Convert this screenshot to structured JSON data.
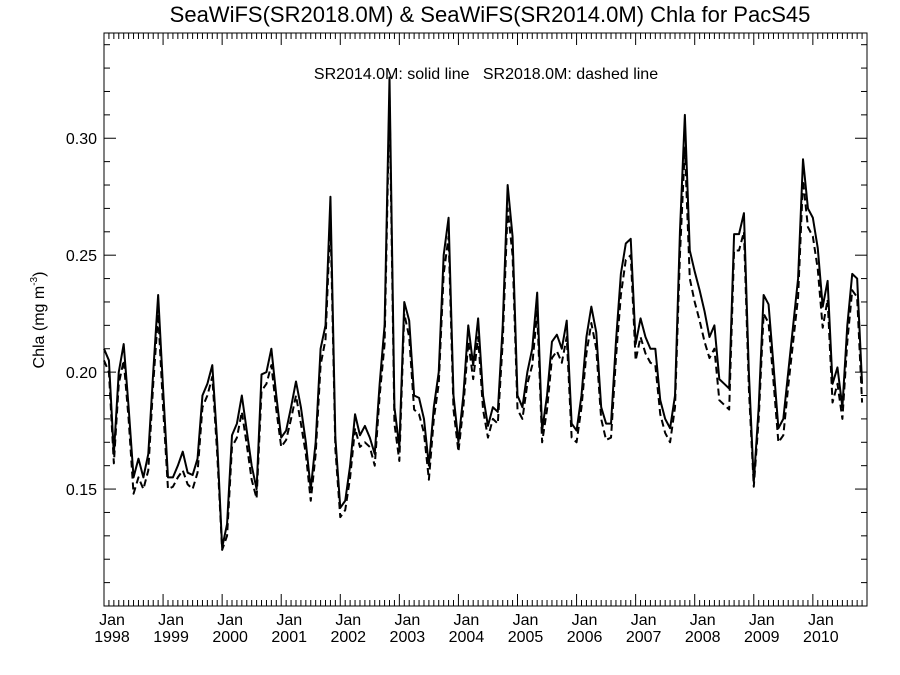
{
  "chart_data": {
    "type": "line",
    "title": "SeaWiFS(SR2018.0M) & SeaWiFS(SR2014.0M)  Chla for PacS45",
    "annotation": "SR2014.0M: solid line   SR2018.0M: dashed line",
    "ylabel": {
      "base": "Chla (mg m",
      "sup": "-3",
      "close": ")"
    },
    "x_start": "1998-01",
    "x_end": "2010-12",
    "ylim": [
      0.1,
      0.345
    ],
    "yticks": [
      0.15,
      0.2,
      0.25,
      0.3
    ],
    "ytick_labels": [
      "0.15",
      "0.20",
      "0.25",
      "0.30"
    ],
    "xtick_labels": [
      {
        "month": "Jan",
        "year": "1998"
      },
      {
        "month": "Jan",
        "year": "1999"
      },
      {
        "month": "Jan",
        "year": "2000"
      },
      {
        "month": "Jan",
        "year": "2001"
      },
      {
        "month": "Jan",
        "year": "2002"
      },
      {
        "month": "Jan",
        "year": "2003"
      },
      {
        "month": "Jan",
        "year": "2004"
      },
      {
        "month": "Jan",
        "year": "2005"
      },
      {
        "month": "Jan",
        "year": "2006"
      },
      {
        "month": "Jan",
        "year": "2007"
      },
      {
        "month": "Jan",
        "year": "2008"
      },
      {
        "month": "Jan",
        "year": "2009"
      },
      {
        "month": "Jan",
        "year": "2010"
      }
    ],
    "series": [
      {
        "style": "solid",
        "values": [
          0.21,
          0.205,
          0.165,
          0.2,
          0.212,
          0.185,
          0.155,
          0.163,
          0.155,
          0.165,
          0.2,
          0.233,
          0.193,
          0.155,
          0.155,
          0.16,
          0.166,
          0.157,
          0.156,
          0.163,
          0.19,
          0.195,
          0.203,
          0.17,
          0.125,
          0.135,
          0.173,
          0.178,
          0.19,
          0.175,
          0.16,
          0.15,
          0.199,
          0.2,
          0.21,
          0.19,
          0.172,
          0.175,
          0.185,
          0.196,
          0.185,
          0.17,
          0.15,
          0.17,
          0.21,
          0.22,
          0.275,
          0.172,
          0.142,
          0.145,
          0.16,
          0.182,
          0.173,
          0.177,
          0.172,
          0.165,
          0.195,
          0.22,
          0.326,
          0.185,
          0.168,
          0.23,
          0.222,
          0.19,
          0.189,
          0.18,
          0.16,
          0.185,
          0.2,
          0.25,
          0.266,
          0.19,
          0.17,
          0.19,
          0.22,
          0.203,
          0.223,
          0.19,
          0.177,
          0.185,
          0.183,
          0.22,
          0.28,
          0.258,
          0.19,
          0.185,
          0.2,
          0.21,
          0.234,
          0.175,
          0.19,
          0.213,
          0.216,
          0.21,
          0.222,
          0.178,
          0.175,
          0.19,
          0.215,
          0.228,
          0.217,
          0.185,
          0.178,
          0.178,
          0.213,
          0.242,
          0.255,
          0.257,
          0.212,
          0.223,
          0.215,
          0.21,
          0.21,
          0.188,
          0.18,
          0.176,
          0.19,
          0.26,
          0.31,
          0.252,
          0.243,
          0.235,
          0.226,
          0.215,
          0.22,
          0.197,
          0.195,
          0.193,
          0.259,
          0.259,
          0.268,
          0.2,
          0.153,
          0.185,
          0.233,
          0.229,
          0.203,
          0.176,
          0.18,
          0.2,
          0.22,
          0.24,
          0.291,
          0.27,
          0.266,
          0.253,
          0.228,
          0.239,
          0.195,
          0.202,
          0.185,
          0.22,
          0.242,
          0.24,
          0.195
        ]
      },
      {
        "style": "dashed",
        "values": [
          0.205,
          0.2,
          0.161,
          0.195,
          0.205,
          0.18,
          0.148,
          0.155,
          0.15,
          0.158,
          0.195,
          0.225,
          0.185,
          0.15,
          0.151,
          0.155,
          0.158,
          0.152,
          0.15,
          0.157,
          0.185,
          0.19,
          0.198,
          0.165,
          0.124,
          0.13,
          0.168,
          0.172,
          0.183,
          0.169,
          0.154,
          0.146,
          0.192,
          0.195,
          0.203,
          0.184,
          0.168,
          0.171,
          0.18,
          0.19,
          0.178,
          0.165,
          0.145,
          0.165,
          0.203,
          0.214,
          0.266,
          0.167,
          0.138,
          0.141,
          0.155,
          0.176,
          0.168,
          0.17,
          0.168,
          0.16,
          0.19,
          0.212,
          0.318,
          0.178,
          0.162,
          0.225,
          0.215,
          0.184,
          0.182,
          0.174,
          0.154,
          0.18,
          0.195,
          0.242,
          0.258,
          0.184,
          0.166,
          0.185,
          0.213,
          0.197,
          0.215,
          0.184,
          0.172,
          0.18,
          0.178,
          0.213,
          0.27,
          0.25,
          0.184,
          0.18,
          0.195,
          0.203,
          0.226,
          0.17,
          0.184,
          0.206,
          0.209,
          0.204,
          0.215,
          0.172,
          0.17,
          0.185,
          0.208,
          0.221,
          0.21,
          0.18,
          0.171,
          0.172,
          0.206,
          0.233,
          0.248,
          0.25,
          0.205,
          0.215,
          0.208,
          0.204,
          0.203,
          0.182,
          0.174,
          0.17,
          0.185,
          0.25,
          0.296,
          0.24,
          0.23,
          0.222,
          0.213,
          0.206,
          0.21,
          0.188,
          0.186,
          0.184,
          0.252,
          0.252,
          0.26,
          0.193,
          0.151,
          0.18,
          0.225,
          0.221,
          0.196,
          0.17,
          0.173,
          0.194,
          0.213,
          0.232,
          0.282,
          0.262,
          0.258,
          0.244,
          0.219,
          0.231,
          0.187,
          0.195,
          0.18,
          0.213,
          0.235,
          0.232,
          0.187
        ]
      }
    ]
  }
}
